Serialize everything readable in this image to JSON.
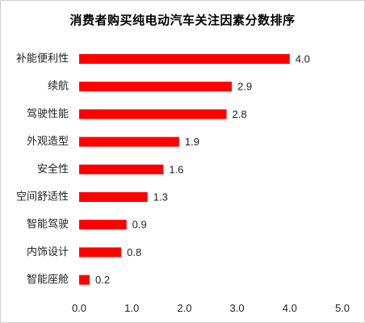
{
  "chart_data": {
    "type": "bar",
    "orientation": "horizontal",
    "title": "消费者购买纯电动汽车关注因素分数排序",
    "categories": [
      "补能便利性",
      "续航",
      "驾驶性能",
      "外观造型",
      "安全性",
      "空间舒适性",
      "智能驾驶",
      "内饰设计",
      "智能座舱"
    ],
    "values": [
      4.0,
      2.9,
      2.8,
      1.9,
      1.6,
      1.3,
      0.9,
      0.8,
      0.2
    ],
    "value_labels": [
      "4.0",
      "2.9",
      "2.8",
      "1.9",
      "1.6",
      "1.3",
      "0.9",
      "0.8",
      "0.2"
    ],
    "xlim": [
      0,
      5
    ],
    "xticks": [
      0,
      1,
      2,
      3,
      4,
      5
    ],
    "xtick_labels": [
      "0.0",
      "1.0",
      "2.0",
      "3.0",
      "4.0",
      "5.0"
    ],
    "xlabel": "",
    "ylabel": "",
    "grid": false,
    "legend": "none",
    "bar_color": "#ff0000"
  }
}
